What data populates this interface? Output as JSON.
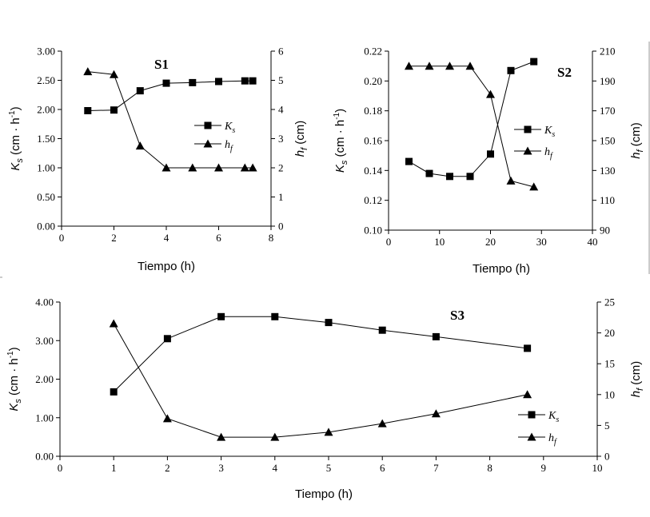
{
  "chart_data": [
    {
      "id": "s1",
      "type": "line",
      "title": "S1",
      "xlabel": "Tiempo (h)",
      "ylabel_left": "Ks (cm · h⁻¹)",
      "ylabel_right": "hf (cm)",
      "xlim": [
        0,
        8
      ],
      "xticks": [
        0,
        2,
        4,
        6,
        8
      ],
      "xtick_labels": [
        "0",
        "2",
        "4",
        "6",
        "8"
      ],
      "ylim_left": [
        0,
        3
      ],
      "yticks_left": [
        0,
        0.5,
        1,
        1.5,
        2,
        2.5,
        3
      ],
      "ytick_labels_left": [
        "0.00",
        "0.50",
        "1.00",
        "1.50",
        "2.00",
        "2.50",
        "3.00"
      ],
      "ylim_right": [
        0,
        6
      ],
      "yticks_right": [
        0,
        1,
        2,
        3,
        4,
        5,
        6
      ],
      "ytick_labels_right": [
        "0",
        "1",
        "2",
        "3",
        "4",
        "5",
        "6"
      ],
      "legend": [
        "Ks",
        "hf"
      ],
      "series": [
        {
          "name": "Ks",
          "marker": "square",
          "axis": "left",
          "x": [
            1,
            2,
            3,
            4,
            5,
            6,
            7,
            7.3
          ],
          "y": [
            1.98,
            1.99,
            2.32,
            2.45,
            2.46,
            2.48,
            2.49,
            2.49
          ]
        },
        {
          "name": "hf",
          "marker": "triangle",
          "axis": "right",
          "x": [
            1,
            2,
            3,
            4,
            5,
            6,
            7,
            7.3
          ],
          "y": [
            5.3,
            5.2,
            2.75,
            2.0,
            2.0,
            2.0,
            2.0,
            2.0
          ]
        }
      ]
    },
    {
      "id": "s2",
      "type": "line",
      "title": "S2",
      "xlabel": "Tiempo (h)",
      "ylabel_left": "Ks (cm · h⁻¹)",
      "ylabel_right": "hf (cm)",
      "xlim": [
        0,
        40
      ],
      "xticks": [
        0,
        10,
        20,
        30,
        40
      ],
      "xtick_labels": [
        "0",
        "10",
        "20",
        "30",
        "40"
      ],
      "ylim_left": [
        0.1,
        0.22
      ],
      "yticks_left": [
        0.1,
        0.12,
        0.14,
        0.16,
        0.18,
        0.2,
        0.22
      ],
      "ytick_labels_left": [
        "0.10",
        "0.12",
        "0.14",
        "0.16",
        "0.18",
        "0.20",
        "0.22"
      ],
      "ylim_right": [
        90,
        210
      ],
      "yticks_right": [
        90,
        110,
        130,
        150,
        170,
        190,
        210
      ],
      "ytick_labels_right": [
        "90",
        "110",
        "130",
        "150",
        "170",
        "190",
        "210"
      ],
      "legend": [
        "Ks",
        "hf"
      ],
      "series": [
        {
          "name": "Ks",
          "marker": "square",
          "axis": "left",
          "x": [
            4,
            8,
            12,
            16,
            20,
            24,
            28.5
          ],
          "y": [
            0.146,
            0.138,
            0.136,
            0.136,
            0.151,
            0.207,
            0.213
          ]
        },
        {
          "name": "hf",
          "marker": "triangle",
          "axis": "right",
          "x": [
            4,
            8,
            12,
            16,
            20,
            24,
            28.5
          ],
          "y": [
            200,
            200,
            200,
            200,
            181,
            123,
            119
          ]
        }
      ]
    },
    {
      "id": "s3",
      "type": "line",
      "title": "S3",
      "xlabel": "Tiempo (h)",
      "ylabel_left": "Ks (cm · h⁻¹)",
      "ylabel_right": "hf (cm)",
      "xlim": [
        0,
        10
      ],
      "xticks": [
        0,
        1,
        2,
        3,
        4,
        5,
        6,
        7,
        8,
        9,
        10
      ],
      "xtick_labels": [
        "0",
        "1",
        "2",
        "3",
        "4",
        "5",
        "6",
        "7",
        "8",
        "9",
        "10"
      ],
      "ylim_left": [
        0,
        4
      ],
      "yticks_left": [
        0,
        1,
        2,
        3,
        4
      ],
      "ytick_labels_left": [
        "0.00",
        "1.00",
        "2.00",
        "3.00",
        "4.00"
      ],
      "ylim_right": [
        0,
        25
      ],
      "yticks_right": [
        0,
        5,
        10,
        15,
        20,
        25
      ],
      "ytick_labels_right": [
        "0",
        "5",
        "10",
        "15",
        "20",
        "25"
      ],
      "legend": [
        "Ks",
        "hf"
      ],
      "series": [
        {
          "name": "Ks",
          "marker": "square",
          "axis": "left",
          "x": [
            1,
            2,
            3,
            4,
            5,
            6,
            7,
            8.7
          ],
          "y": [
            1.67,
            3.05,
            3.62,
            3.62,
            3.47,
            3.27,
            3.1,
            2.8
          ]
        },
        {
          "name": "hf",
          "marker": "triangle",
          "axis": "right",
          "x": [
            1,
            2,
            3,
            4,
            5,
            6,
            7,
            8.7
          ],
          "y": [
            21.5,
            6.1,
            3.1,
            3.1,
            3.9,
            5.3,
            6.9,
            10.0
          ]
        }
      ]
    }
  ]
}
